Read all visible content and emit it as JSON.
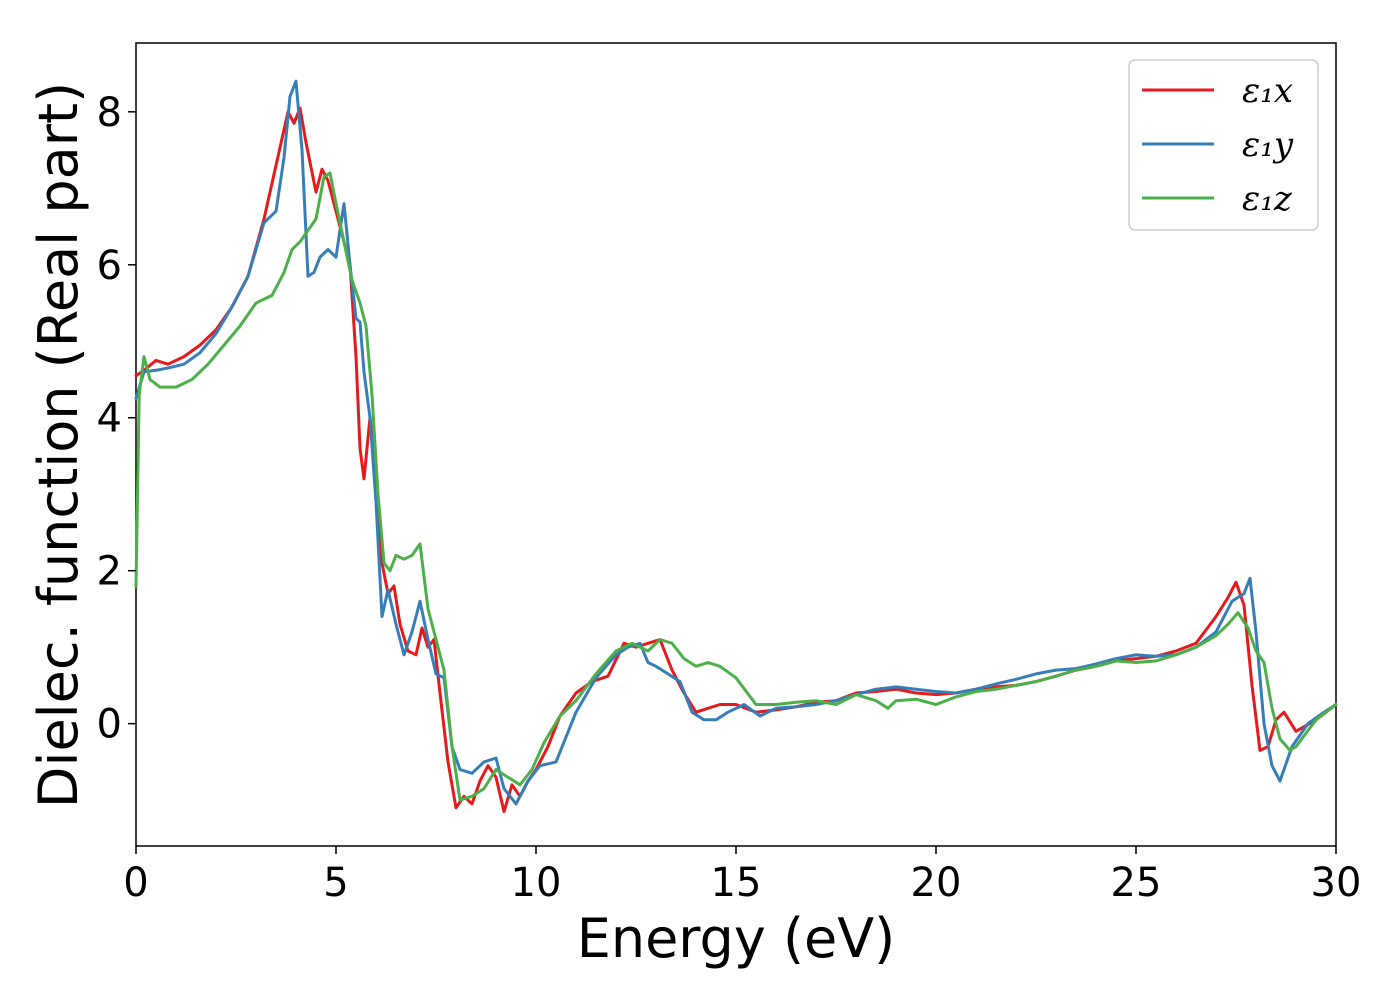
{
  "chart_data": {
    "type": "line",
    "title": "",
    "xlabel": "Energy (eV)",
    "ylabel": "Dielec. function (Real part)",
    "xlim": [
      0,
      30
    ],
    "ylim": [
      -1.6,
      8.9
    ],
    "xticks": [
      0,
      5,
      10,
      15,
      20,
      25,
      30
    ],
    "yticks": [
      0,
      2,
      4,
      6,
      8
    ],
    "grid": false,
    "legend_position": "top-right",
    "series": [
      {
        "name": "ε₁x",
        "color": "#e41a1c",
        "x": [
          0,
          0.2,
          0.5,
          0.8,
          1.2,
          1.6,
          2.0,
          2.4,
          2.8,
          3.2,
          3.5,
          3.8,
          3.95,
          4.1,
          4.25,
          4.5,
          4.65,
          4.8,
          5.0,
          5.2,
          5.35,
          5.5,
          5.6,
          5.7,
          5.85,
          6.0,
          6.15,
          6.3,
          6.45,
          6.6,
          6.8,
          7.0,
          7.15,
          7.3,
          7.45,
          7.6,
          7.8,
          8.0,
          8.2,
          8.4,
          8.6,
          8.8,
          9.0,
          9.2,
          9.4,
          9.6,
          9.8,
          10.0,
          10.3,
          10.6,
          11.0,
          11.4,
          11.8,
          12.2,
          12.5,
          12.8,
          13.1,
          13.4,
          13.7,
          14.0,
          14.3,
          14.6,
          15.0,
          15.5,
          16.0,
          16.5,
          17.0,
          17.5,
          18.0,
          18.5,
          19.0,
          19.5,
          20.0,
          20.5,
          21.0,
          21.5,
          22.0,
          22.5,
          23.0,
          23.5,
          24.0,
          24.5,
          25.0,
          25.5,
          26.0,
          26.5,
          27.0,
          27.3,
          27.5,
          27.7,
          27.9,
          28.1,
          28.3,
          28.5,
          28.7,
          29.0,
          29.5,
          30.0
        ],
        "y": [
          4.55,
          4.62,
          4.75,
          4.7,
          4.8,
          4.95,
          5.15,
          5.45,
          5.85,
          6.6,
          7.3,
          8.0,
          7.85,
          8.05,
          7.6,
          6.95,
          7.25,
          7.1,
          6.7,
          6.3,
          6.0,
          4.8,
          3.6,
          3.2,
          4.0,
          3.3,
          2.1,
          1.7,
          1.8,
          1.3,
          0.95,
          0.9,
          1.25,
          1.0,
          1.1,
          0.4,
          -0.5,
          -1.1,
          -0.95,
          -1.05,
          -0.75,
          -0.55,
          -0.7,
          -1.15,
          -0.8,
          -0.95,
          -0.75,
          -0.6,
          -0.3,
          0.1,
          0.4,
          0.55,
          0.62,
          1.05,
          1.0,
          1.05,
          1.1,
          0.7,
          0.4,
          0.15,
          0.2,
          0.25,
          0.25,
          0.15,
          0.18,
          0.22,
          0.28,
          0.3,
          0.4,
          0.42,
          0.45,
          0.4,
          0.38,
          0.4,
          0.45,
          0.48,
          0.5,
          0.55,
          0.62,
          0.7,
          0.75,
          0.82,
          0.85,
          0.88,
          0.95,
          1.05,
          1.4,
          1.65,
          1.85,
          1.55,
          0.5,
          -0.35,
          -0.3,
          0.05,
          0.15,
          -0.1,
          0.05,
          0.25
        ]
      },
      {
        "name": "ε₁y",
        "color": "#377eb8",
        "x": [
          0,
          0.2,
          0.5,
          0.8,
          1.2,
          1.6,
          2.0,
          2.4,
          2.8,
          3.2,
          3.5,
          3.7,
          3.85,
          4.0,
          4.15,
          4.3,
          4.45,
          4.6,
          4.8,
          5.0,
          5.2,
          5.35,
          5.5,
          5.6,
          5.7,
          5.85,
          6.0,
          6.15,
          6.3,
          6.5,
          6.7,
          6.9,
          7.1,
          7.3,
          7.5,
          7.7,
          7.9,
          8.1,
          8.4,
          8.7,
          9.0,
          9.2,
          9.5,
          9.8,
          10.1,
          10.5,
          11.0,
          11.5,
          12.0,
          12.3,
          12.6,
          12.8,
          13.0,
          13.3,
          13.6,
          13.9,
          14.2,
          14.5,
          14.8,
          15.2,
          15.6,
          16.0,
          16.5,
          17.0,
          17.5,
          18.0,
          18.5,
          19.0,
          19.5,
          20.0,
          20.5,
          21.0,
          21.5,
          22.0,
          22.5,
          23.0,
          23.5,
          24.0,
          24.5,
          25.0,
          25.5,
          26.0,
          26.5,
          27.0,
          27.4,
          27.7,
          27.85,
          28.0,
          28.2,
          28.4,
          28.6,
          28.9,
          29.3,
          29.7,
          30.0
        ],
        "y": [
          4.25,
          4.6,
          4.62,
          4.65,
          4.7,
          4.85,
          5.1,
          5.45,
          5.85,
          6.55,
          6.7,
          7.4,
          8.2,
          8.4,
          7.5,
          5.85,
          5.9,
          6.1,
          6.2,
          6.1,
          6.8,
          6.0,
          5.3,
          5.25,
          4.6,
          4.0,
          2.9,
          1.4,
          1.75,
          1.3,
          0.9,
          1.2,
          1.6,
          1.1,
          0.65,
          0.6,
          -0.3,
          -0.6,
          -0.65,
          -0.5,
          -0.45,
          -0.85,
          -1.05,
          -0.75,
          -0.55,
          -0.5,
          0.15,
          0.6,
          0.9,
          1.0,
          1.05,
          0.8,
          0.75,
          0.65,
          0.55,
          0.15,
          0.05,
          0.05,
          0.15,
          0.25,
          0.1,
          0.2,
          0.22,
          0.25,
          0.3,
          0.38,
          0.45,
          0.48,
          0.45,
          0.42,
          0.4,
          0.45,
          0.52,
          0.58,
          0.65,
          0.7,
          0.72,
          0.78,
          0.85,
          0.9,
          0.88,
          0.9,
          1.0,
          1.2,
          1.6,
          1.7,
          1.9,
          1.2,
          0.0,
          -0.55,
          -0.75,
          -0.3,
          0.0,
          0.15,
          0.25
        ]
      },
      {
        "name": "ε₁z",
        "color": "#4daf4a",
        "x": [
          0,
          0.08,
          0.2,
          0.35,
          0.6,
          1.0,
          1.4,
          1.8,
          2.2,
          2.6,
          3.0,
          3.4,
          3.7,
          3.9,
          4.1,
          4.3,
          4.5,
          4.7,
          4.85,
          5.0,
          5.2,
          5.4,
          5.6,
          5.75,
          5.9,
          6.05,
          6.2,
          6.35,
          6.5,
          6.7,
          6.9,
          7.1,
          7.3,
          7.5,
          7.7,
          7.9,
          8.1,
          8.4,
          8.7,
          9.0,
          9.3,
          9.6,
          9.9,
          10.2,
          10.6,
          11.0,
          11.5,
          12.0,
          12.4,
          12.8,
          13.1,
          13.4,
          13.7,
          14.0,
          14.3,
          14.6,
          15.0,
          15.5,
          16.0,
          16.5,
          17.0,
          17.5,
          18.0,
          18.5,
          18.8,
          19.0,
          19.5,
          20.0,
          20.5,
          21.0,
          21.5,
          22.0,
          22.5,
          23.0,
          23.5,
          24.0,
          24.5,
          25.0,
          25.5,
          26.0,
          26.5,
          27.0,
          27.3,
          27.55,
          27.8,
          28.0,
          28.2,
          28.4,
          28.6,
          28.85,
          29.0,
          29.5,
          30.0
        ],
        "y": [
          1.8,
          4.3,
          4.8,
          4.5,
          4.4,
          4.4,
          4.5,
          4.7,
          4.95,
          5.2,
          5.5,
          5.6,
          5.9,
          6.2,
          6.3,
          6.45,
          6.6,
          7.15,
          7.2,
          6.8,
          6.3,
          5.8,
          5.5,
          5.2,
          4.3,
          3.0,
          2.1,
          2.0,
          2.2,
          2.15,
          2.2,
          2.35,
          1.5,
          1.1,
          0.7,
          -0.3,
          -1.0,
          -0.95,
          -0.85,
          -0.6,
          -0.7,
          -0.8,
          -0.6,
          -0.25,
          0.1,
          0.3,
          0.65,
          0.95,
          1.05,
          0.95,
          1.1,
          1.05,
          0.85,
          0.75,
          0.8,
          0.75,
          0.6,
          0.25,
          0.25,
          0.28,
          0.3,
          0.25,
          0.38,
          0.3,
          0.2,
          0.3,
          0.32,
          0.25,
          0.35,
          0.42,
          0.45,
          0.5,
          0.55,
          0.62,
          0.7,
          0.75,
          0.82,
          0.8,
          0.82,
          0.9,
          1.0,
          1.15,
          1.3,
          1.45,
          1.25,
          0.95,
          0.8,
          0.2,
          -0.2,
          -0.35,
          -0.3,
          0.05,
          0.25
        ]
      }
    ]
  }
}
